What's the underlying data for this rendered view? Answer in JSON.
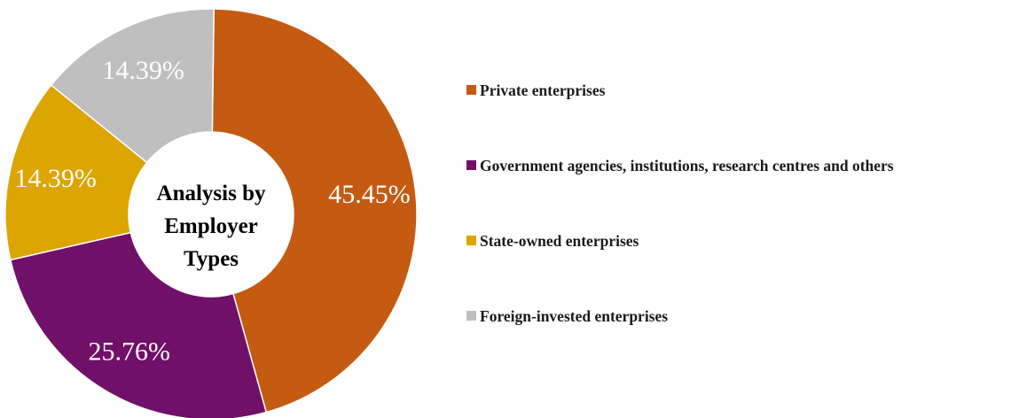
{
  "chart_data": {
    "type": "pie",
    "subtype": "donut",
    "center_title": [
      "Analysis by",
      "Employer",
      "Types"
    ],
    "legend_placement": "right",
    "data_labels": [
      "45.45%",
      "25.76%",
      "14.39%",
      "14.39%"
    ],
    "slices": [
      {
        "label": "Private enterprises",
        "value": 45.45,
        "color": "#C55A11"
      },
      {
        "label": "Government agencies, institutions, research centres and others",
        "value": 25.76,
        "color": "#701068"
      },
      {
        "label": "State-owned enterprises",
        "value": 14.39,
        "color": "#DDA500"
      },
      {
        "label": "Foreign-invested enterprises",
        "value": 14.39,
        "color": "#BFBFBF"
      }
    ]
  }
}
